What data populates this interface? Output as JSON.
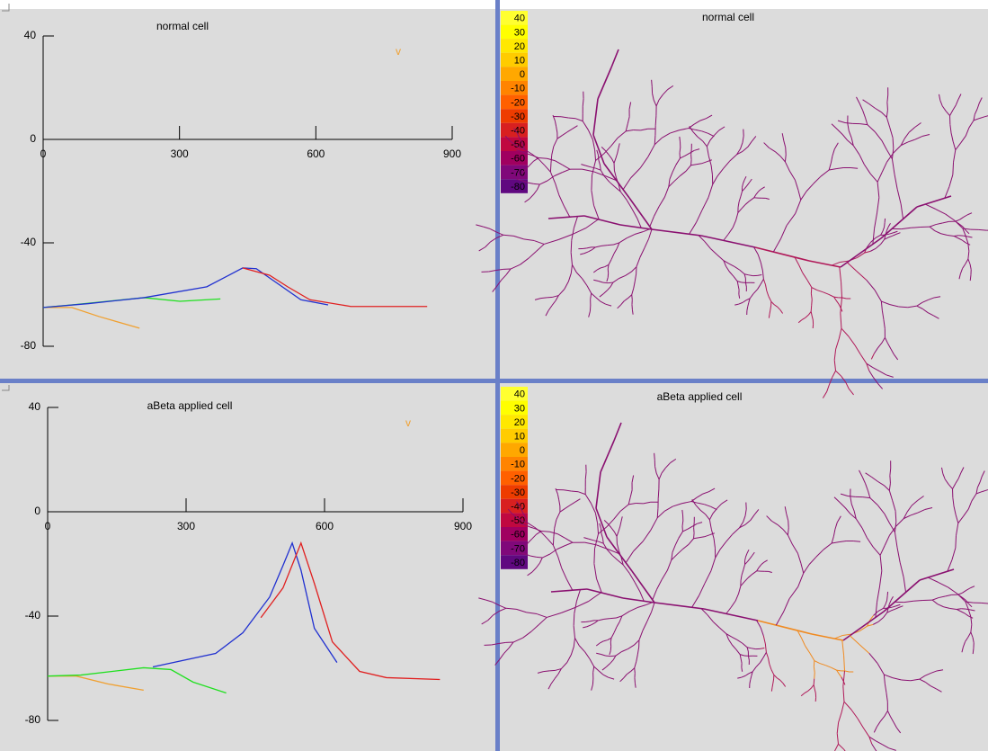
{
  "panels": [
    {
      "title": "normal cell",
      "marker": "v",
      "xlim": [
        0,
        900
      ],
      "ylim": [
        -80,
        40
      ],
      "xticks": [
        0,
        300,
        600,
        900
      ],
      "yticks": [
        40,
        0,
        -40,
        -80
      ],
      "series": [
        {
          "color": "#f0a030",
          "x": [
            0,
            63,
            123,
            212
          ],
          "values": [
            -65,
            -65,
            -68.5,
            -73
          ]
        },
        {
          "color": "#20e020",
          "x": [
            0,
            63,
            142,
            222,
            301,
            390
          ],
          "values": [
            -65,
            -64,
            -62.6,
            -61.2,
            -62.6,
            -61.7
          ]
        },
        {
          "color": "#2030d0",
          "x": [
            0,
            100,
            222,
            360,
            409,
            439,
            469,
            518,
            567,
            627
          ],
          "values": [
            -65,
            -63.5,
            -61.2,
            -57,
            -52.5,
            -49.7,
            -50,
            -56,
            -62,
            -64
          ]
        },
        {
          "color": "#e02020",
          "x": [
            439,
            498,
            538,
            587,
            677,
            845
          ],
          "values": [
            -49.7,
            -52.5,
            -57,
            -62,
            -64.6,
            -64.6
          ]
        }
      ]
    },
    {
      "title": "aBeta applied cell",
      "marker": "v",
      "xlim": [
        0,
        900
      ],
      "ylim": [
        -80,
        40
      ],
      "xticks": [
        0,
        300,
        600,
        900
      ],
      "yticks": [
        40,
        0,
        -40,
        -80
      ],
      "series": [
        {
          "color": "#f0a030",
          "x": [
            0,
            62,
            130,
            208
          ],
          "values": [
            -63,
            -63,
            -66,
            -68.4
          ]
        },
        {
          "color": "#20e020",
          "x": [
            0,
            72,
            208,
            267,
            315,
            387
          ],
          "values": [
            -63,
            -62.6,
            -59.8,
            -60.5,
            -65.3,
            -69.5
          ]
        },
        {
          "color": "#2030d0",
          "x": [
            228,
            364,
            423,
            481,
            510,
            530,
            549,
            578,
            627
          ],
          "values": [
            -59.5,
            -54.3,
            -46.4,
            -32.7,
            -20.6,
            -12,
            -22.4,
            -44.7,
            -57.8
          ]
        },
        {
          "color": "#e02020",
          "x": [
            462,
            510,
            549,
            578,
            617,
            676,
            734,
            850
          ],
          "values": [
            -40.6,
            -29.2,
            -12,
            -27.5,
            -49.9,
            -61.2,
            -63.6,
            -64.3
          ]
        }
      ]
    }
  ],
  "shapes": [
    {
      "title": "normal cell"
    },
    {
      "title": "aBeta applied cell"
    }
  ],
  "colorbar": {
    "values": [
      40,
      30,
      20,
      10,
      0,
      -10,
      -20,
      -30,
      -40,
      -50,
      -60,
      -70,
      -80
    ],
    "colors": [
      "#ffff30",
      "#ffff00",
      "#ffe800",
      "#ffcc00",
      "#ffa800",
      "#ff8400",
      "#ff6000",
      "#ee3c00",
      "#d82020",
      "#c00840",
      "#a00060",
      "#80087a",
      "#600880"
    ]
  }
}
